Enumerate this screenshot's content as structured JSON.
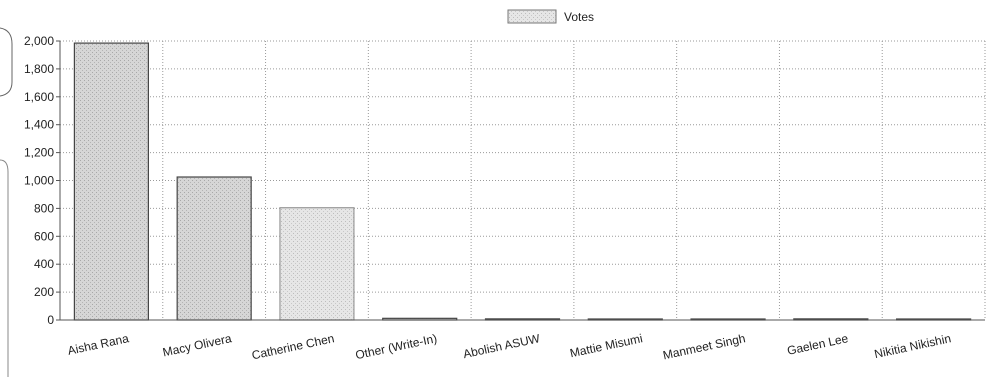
{
  "chart_data": {
    "type": "bar",
    "title": "",
    "xlabel": "",
    "ylabel": "",
    "ylim": [
      0,
      2000
    ],
    "yticks": [
      0,
      200,
      400,
      600,
      800,
      1000,
      1200,
      1400,
      1600,
      1800,
      2000
    ],
    "ytick_labels": [
      "0",
      "200",
      "400",
      "600",
      "800",
      "1,000",
      "1,200",
      "1,400",
      "1,600",
      "1,800",
      "2,000"
    ],
    "categories": [
      "Aisha Rana",
      "Macy Olivera",
      "Catherine Chen",
      "Other (Write-In)",
      "Abolish ASUW",
      "Mattie Misumi",
      "Manmeet Singh",
      "Gaelen Lee",
      "Nikitia Nikishin"
    ],
    "series": [
      {
        "name": "Votes",
        "values": [
          1985,
          1025,
          805,
          12,
          8,
          6,
          7,
          8,
          3
        ],
        "colors": [
          "#c8c8c8",
          "#c8c8c8",
          "#e0e0e0",
          "#cccccc",
          "#cccccc",
          "#cccccc",
          "#cccccc",
          "#cccccc",
          "#cccccc"
        ]
      }
    ],
    "grid": true,
    "legend": "top-center"
  }
}
